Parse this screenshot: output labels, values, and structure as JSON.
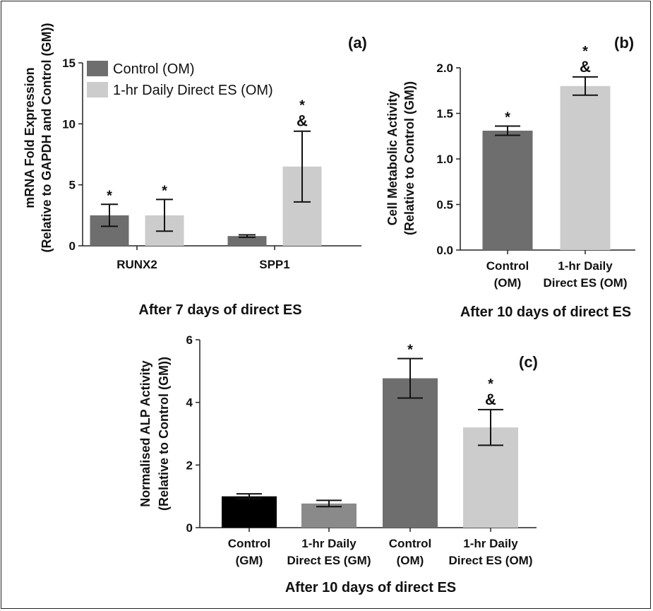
{
  "chart_data": [
    {
      "panel": "(a)",
      "type": "bar",
      "title": "",
      "caption": "After 7 days of direct ES",
      "ylabel": [
        "mRNA Fold Expression",
        "(Relative to GAPDH and Control (GM))"
      ],
      "xlabel": "",
      "categories": [
        "RUNX2",
        "SPP1"
      ],
      "ylim": [
        0,
        15
      ],
      "yticks": [
        0,
        5,
        10,
        15
      ],
      "series": [
        {
          "name": "Control (OM)",
          "color": "#6e6e6e",
          "values": [
            2.5,
            0.8
          ],
          "errors": [
            0.9,
            0.1
          ],
          "sig": [
            "*",
            ""
          ]
        },
        {
          "name": "1-hr Daily Direct ES (OM)",
          "color": "#cccccc",
          "values": [
            2.5,
            6.5
          ],
          "errors": [
            1.3,
            2.9
          ],
          "sig": [
            "*",
            "*\n&"
          ]
        }
      ],
      "legend_position": "top-left"
    },
    {
      "panel": "(b)",
      "type": "bar",
      "title": "",
      "caption": "After 10 days of direct ES",
      "ylabel": [
        "Cell Metabolic Activity",
        "(Relative to Control (GM))"
      ],
      "xlabel": "",
      "categories": [
        "Control\n(OM)",
        "1-hr Daily\nDirect ES (OM)"
      ],
      "ylim": [
        0,
        2.0
      ],
      "yticks": [
        "0.0",
        "0.5",
        "1.0",
        "1.5",
        "2.0"
      ],
      "values": [
        1.31,
        1.8
      ],
      "errors": [
        0.05,
        0.1
      ],
      "colors": [
        "#6e6e6e",
        "#cccccc"
      ],
      "sig": [
        "*",
        "*\n&"
      ]
    },
    {
      "panel": "(c)",
      "type": "bar",
      "title": "",
      "caption": "After 10 days of direct ES",
      "ylabel": [
        "Normalised ALP Activity",
        "(Relative to Control (GM))"
      ],
      "xlabel": "",
      "categories": [
        "Control\n(GM)",
        "1-hr Daily\nDirect ES (GM)",
        "Control\n(OM)",
        "1-hr Daily\nDirect ES (OM)"
      ],
      "ylim": [
        0,
        6
      ],
      "yticks": [
        0,
        2,
        4,
        6
      ],
      "values": [
        1.0,
        0.77,
        4.77,
        3.2
      ],
      "errors": [
        0.08,
        0.1,
        0.63,
        0.57
      ],
      "colors": [
        "#000000",
        "#8a8a8a",
        "#6e6e6e",
        "#cccccc"
      ],
      "sig": [
        "",
        "",
        "*",
        "*\n&"
      ]
    }
  ]
}
